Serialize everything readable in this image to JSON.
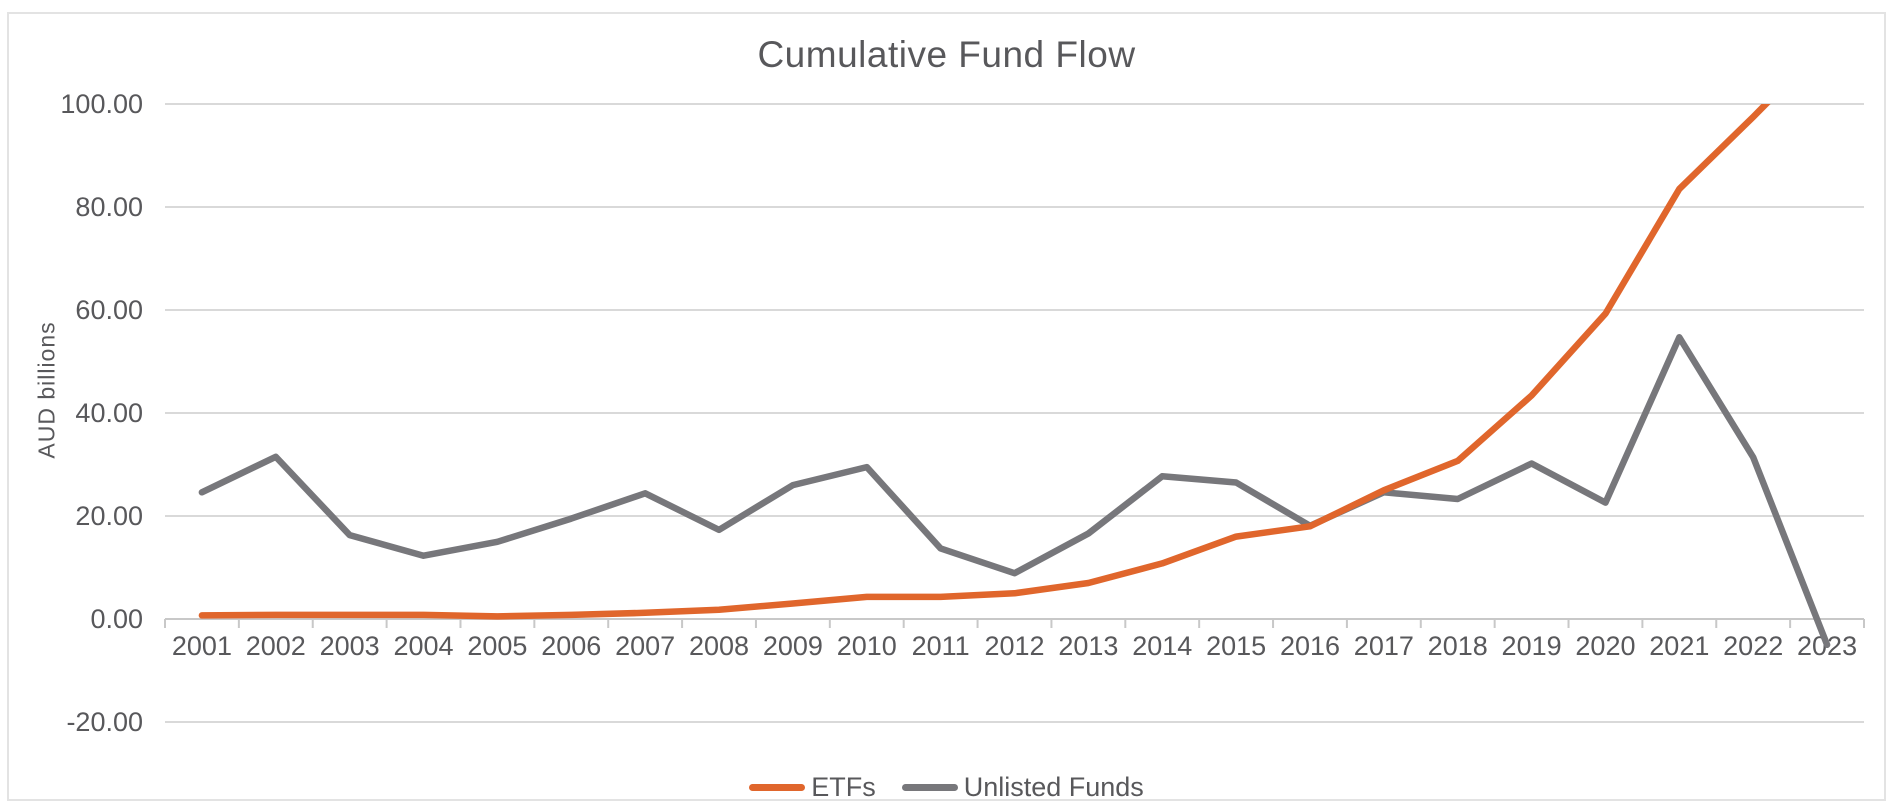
{
  "chart_data": {
    "type": "line",
    "title": "Cumulative Fund Flow",
    "ylabel": "AUD billions",
    "xlabel": "",
    "x": [
      "2001",
      "2002",
      "2003",
      "2004",
      "2005",
      "2006",
      "2007",
      "2008",
      "2009",
      "2010",
      "2011",
      "2012",
      "2013",
      "2014",
      "2015",
      "2016",
      "2017",
      "2018",
      "2019",
      "2020",
      "2021",
      "2022",
      "2023"
    ],
    "series": [
      {
        "name": "ETFs",
        "color": "#e0662c",
        "values": [
          0.7,
          0.8,
          0.8,
          0.8,
          0.5,
          0.8,
          1.2,
          1.8,
          3.0,
          4.3,
          4.3,
          5.0,
          7.0,
          10.8,
          16.0,
          18.0,
          25.0,
          30.7,
          43.4,
          59.3,
          83.5,
          97.5,
          112.0
        ]
      },
      {
        "name": "Unlisted Funds",
        "color": "#77777b",
        "values": [
          24.6,
          31.5,
          16.3,
          12.3,
          15.0,
          19.5,
          24.4,
          17.3,
          26.0,
          29.5,
          13.7,
          8.9,
          16.6,
          27.7,
          26.5,
          18.1,
          24.6,
          23.3,
          30.2,
          22.6,
          54.7,
          31.4,
          -5.0
        ]
      }
    ],
    "ylim": [
      -20,
      100
    ],
    "ytick_step": 20,
    "ytick_labels": [
      "100.00",
      "80.00",
      "60.00",
      "40.00",
      "20.00",
      "0.00",
      "-20.00"
    ],
    "grid": "horizontal",
    "legend_position": "bottom-center",
    "values_clipped_at_ymax": true
  },
  "colors": {
    "gridline": "#d9d9d9",
    "axis_line": "#c8c8c8",
    "tick_mark": "#c8c8c8",
    "axis_text": "#58585b",
    "title_text": "#58585b",
    "canvas_border": "#e3e3e3",
    "background": "#ffffff"
  }
}
